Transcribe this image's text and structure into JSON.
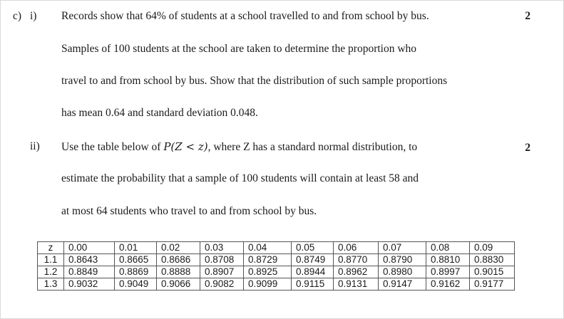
{
  "part_c_label": "c)",
  "part_i_label": "i)",
  "part_i_marks": "2",
  "part_i_lines": [
    "Records show that 64% of students at a school travelled to and from school by bus.",
    "Samples of 100 students at the school are taken to determine the proportion who",
    "travel to and from school by bus. Show that the distribution of such sample proportions",
    "has mean 0.64 and standard deviation 0.048."
  ],
  "part_ii_label": "ii)",
  "part_ii_marks": "2",
  "part_ii_line1_pre": "Use the table below of ",
  "part_ii_math": "P(Z < z)",
  "part_ii_line1_post": ", where Z has a standard normal distribution, to",
  "part_ii_lines": [
    "estimate the probability that a sample of 100 students will contain at least 58 and",
    "at most 64 students who travel to and from school by bus."
  ],
  "ztable": {
    "header": [
      "z",
      "0.00",
      "0.01",
      "0.02",
      "0.03",
      "0.04",
      "0.05",
      "0.06",
      "0.07",
      "0.08",
      "0.09"
    ],
    "rows": [
      [
        "1.1",
        "0.8643",
        "0.8665",
        "0.8686",
        "0.8708",
        "0.8729",
        "0.8749",
        "0.8770",
        "0.8790",
        "0.8810",
        "0.8830"
      ],
      [
        "1.2",
        "0.8849",
        "0.8869",
        "0.8888",
        "0.8907",
        "0.8925",
        "0.8944",
        "0.8962",
        "0.8980",
        "0.8997",
        "0.9015"
      ],
      [
        "1.3",
        "0.9032",
        "0.9049",
        "0.9066",
        "0.9082",
        "0.9099",
        "0.9115",
        "0.9131",
        "0.9147",
        "0.9162",
        "0.9177"
      ]
    ]
  }
}
